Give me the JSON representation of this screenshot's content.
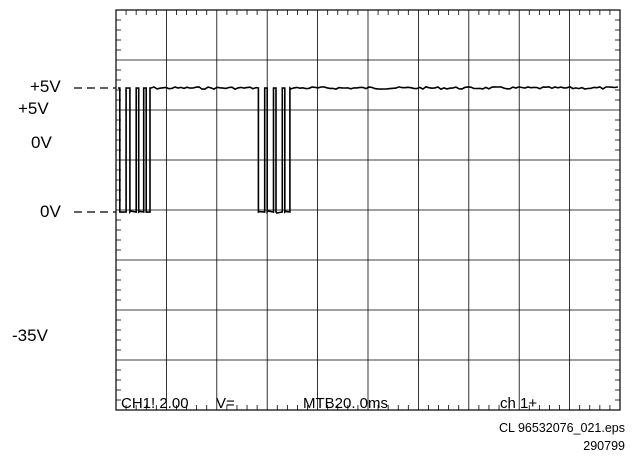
{
  "chart_data": {
    "type": "line",
    "title": "",
    "grid": true,
    "grid_divisions": {
      "x": 10,
      "y": 8
    },
    "level_labels": {
      "high_marker": "+5V",
      "high": "+5V",
      "low": "0V",
      "low_marker": "0V",
      "negative": "-35V"
    },
    "status_bar": {
      "channel": "CH1! 2.00",
      "coupling": "V=",
      "timebase": "MTB20. 0ms",
      "trigger": "ch 1+"
    },
    "x_unit": "ms",
    "x_range": [
      0,
      200
    ],
    "series": [
      {
        "signal_levels": {
          "high": 5,
          "low": 0
        },
        "bursts": [
          {
            "start": 1.5,
            "end": 13.5,
            "transitions_ms": [
              1.5,
              4.0,
              5.5,
              8.0,
              9.0,
              11.0,
              12.0,
              13.5
            ]
          },
          {
            "start": 56.5,
            "end": 69.0,
            "transitions_ms": [
              56.5,
              59.0,
              60.0,
              62.5,
              63.5,
              66.0,
              67.0,
              69.0
            ]
          }
        ],
        "idle_level": 5
      }
    ]
  },
  "caption": {
    "file": "CL 96532076_021.eps",
    "date": "290799"
  }
}
